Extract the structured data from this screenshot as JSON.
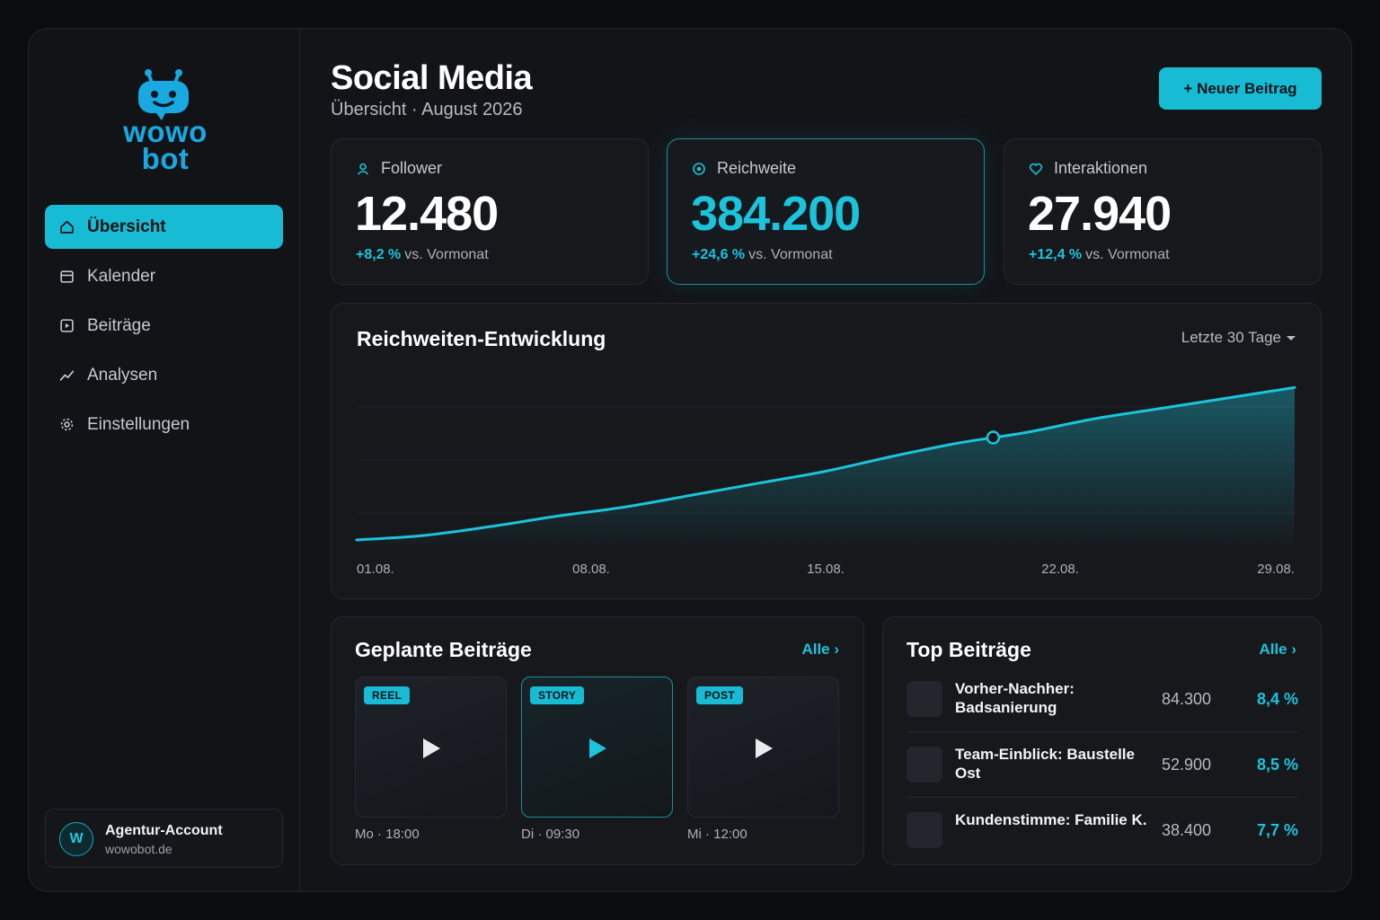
{
  "brand": {
    "line1": "wowo",
    "line2": "bot"
  },
  "sidebar": {
    "items": [
      {
        "label": "Übersicht",
        "icon": "home-icon",
        "active": true
      },
      {
        "label": "Kalender",
        "icon": "calendar-icon",
        "active": false
      },
      {
        "label": "Beiträge",
        "icon": "play-square-icon",
        "active": false
      },
      {
        "label": "Analysen",
        "icon": "trend-line-icon",
        "active": false
      },
      {
        "label": "Einstellungen",
        "icon": "gear-icon",
        "active": false
      }
    ],
    "account": {
      "avatar": "W",
      "name": "Agentur-Account",
      "domain": "wowobot.de"
    }
  },
  "header": {
    "title": "Social Media",
    "subtitle": "Übersicht · August 2026",
    "new_button": "+ Neuer Beitrag"
  },
  "stats": [
    {
      "label": "Follower",
      "icon": "user-icon",
      "value": "12.480",
      "change": "+8,2 %",
      "suffix": "vs. Vormonat"
    },
    {
      "label": "Reichweite",
      "icon": "target-icon",
      "value": "384.200",
      "change": "+24,6 %",
      "suffix": "vs. Vormonat"
    },
    {
      "label": "Interaktionen",
      "icon": "heart-icon",
      "value": "27.940",
      "change": "+12,4 %",
      "suffix": "vs. Vormonat"
    }
  ],
  "chart": {
    "title": "Reichweiten-Entwicklung",
    "range": "Letzte 30 Tage"
  },
  "chart_data": {
    "type": "area",
    "title": "Reichweiten-Entwicklung",
    "xlabel": "",
    "ylabel": "",
    "x_ticks": [
      "01.08.",
      "08.08.",
      "15.08.",
      "22.08.",
      "29.08."
    ],
    "x": [
      1,
      3,
      5,
      7,
      9,
      11,
      13,
      15,
      17,
      19,
      21,
      23,
      25,
      27,
      29
    ],
    "y": [
      3,
      6,
      12,
      19,
      25,
      33,
      41,
      49,
      59,
      68,
      75,
      84,
      91,
      98,
      105
    ],
    "highlight_x": 20,
    "ylim": [
      0,
      110
    ],
    "grid": true,
    "color": "#1cc3da"
  },
  "planned": {
    "title": "Geplante Beiträge",
    "all_label": "Alle ›",
    "items": [
      {
        "tag": "REEL",
        "time": "Mo · 18:00"
      },
      {
        "tag": "STORY",
        "time": "Di · 09:30"
      },
      {
        "tag": "POST",
        "time": "Mi · 12:00"
      }
    ]
  },
  "top": {
    "title": "Top Beiträge",
    "all_label": "Alle ›",
    "rows": [
      {
        "name": "Vorher-Nachher: Badsanierung",
        "views": "84.300",
        "rate": "8,4 %"
      },
      {
        "name": "Team-Einblick: Baustelle Ost",
        "views": "52.900",
        "rate": "8,5 %"
      },
      {
        "name": "Kundenstimme: Familie K.",
        "views": "38.400",
        "rate": "7,7 %"
      }
    ]
  },
  "colors": {
    "accent": "#17bcd4",
    "background": "#0b0c0f",
    "panel": "#17181c"
  }
}
